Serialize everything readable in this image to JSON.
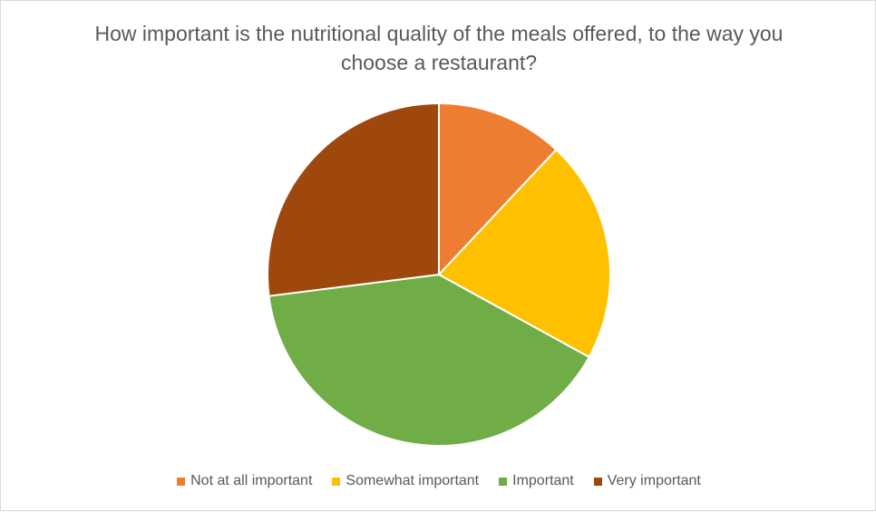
{
  "chart_data": {
    "type": "pie",
    "title": "How important is the nutritional quality of the meals offered, to the way you choose a restaurant?",
    "categories": [
      "Not at all important",
      "Somewhat important",
      "Important",
      "Very important"
    ],
    "values": [
      12,
      21,
      40,
      27
    ],
    "colors": [
      "#ed7d31",
      "#ffc000",
      "#70ad47",
      "#9e480e"
    ],
    "legend": "bottom"
  }
}
